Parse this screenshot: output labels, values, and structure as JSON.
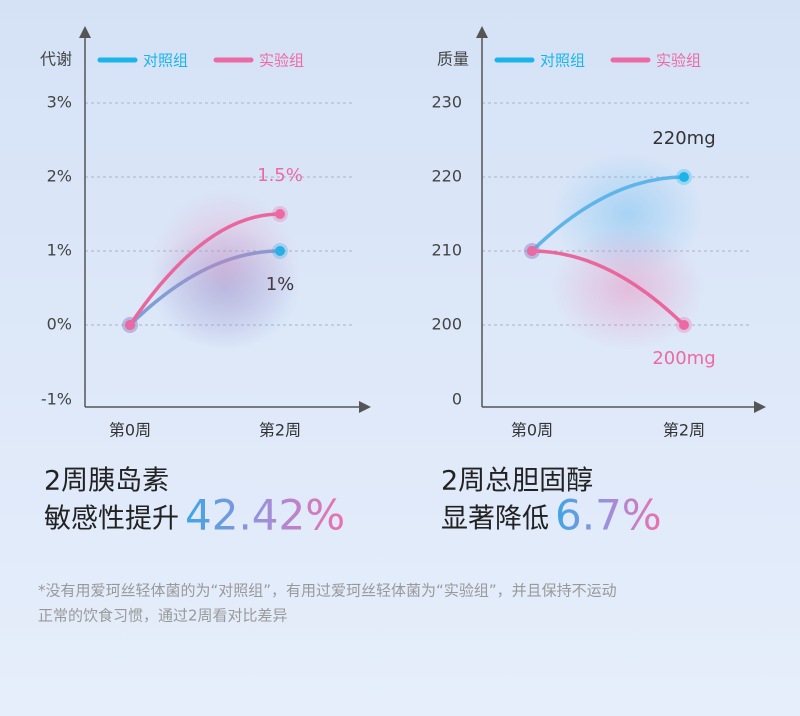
{
  "chart_data": [
    {
      "type": "line",
      "y_label": "代谢",
      "categories": [
        "第0周",
        "第2周"
      ],
      "ylim": [
        -1,
        3
      ],
      "yticks": [
        {
          "value": -1,
          "label": "-1%"
        },
        {
          "value": 0,
          "label": "0%"
        },
        {
          "value": 1,
          "label": "1%"
        },
        {
          "value": 2,
          "label": "2%"
        },
        {
          "value": 3,
          "label": "3%"
        }
      ],
      "grid": true,
      "series": [
        {
          "name": "对照组",
          "color": "#1ab4ea",
          "line_color": "#7f9fd6",
          "values": [
            0,
            1
          ],
          "value_labels": [
            null,
            "1%"
          ]
        },
        {
          "name": "实验组",
          "color": "#ec6aa4",
          "line_color": "#e9679d",
          "values": [
            0,
            1.5
          ],
          "value_labels": [
            null,
            "1.5%"
          ]
        }
      ]
    },
    {
      "type": "line",
      "y_label": "质量",
      "categories": [
        "第0周",
        "第2周"
      ],
      "ylim": [
        0,
        230
      ],
      "yticks": [
        0,
        200,
        210,
        220,
        230
      ],
      "grid": true,
      "series": [
        {
          "name": "对照组",
          "color": "#1ab4ea",
          "line_color": "#5fb4ea",
          "values": [
            210,
            220
          ],
          "value_labels": [
            null,
            "220mg"
          ]
        },
        {
          "name": "实验组",
          "color": "#ec6aa4",
          "line_color": "#e9679d",
          "values": [
            210,
            200
          ],
          "value_labels": [
            null,
            "200mg"
          ]
        }
      ]
    }
  ],
  "summaries": [
    {
      "lines": [
        "2周胰岛素",
        "敏感性提升"
      ],
      "highlight": "42.42%"
    },
    {
      "lines": [
        "2周总胆固醇",
        "显著降低"
      ],
      "highlight": "6.7%"
    }
  ],
  "footnote": [
    "*没有用爱珂丝轻体菌的为“对照组”，有用过爱珂丝轻体菌为“实验组”，并且保持不运动",
    "正常的饮食习惯，通过2周看对比差异"
  ]
}
